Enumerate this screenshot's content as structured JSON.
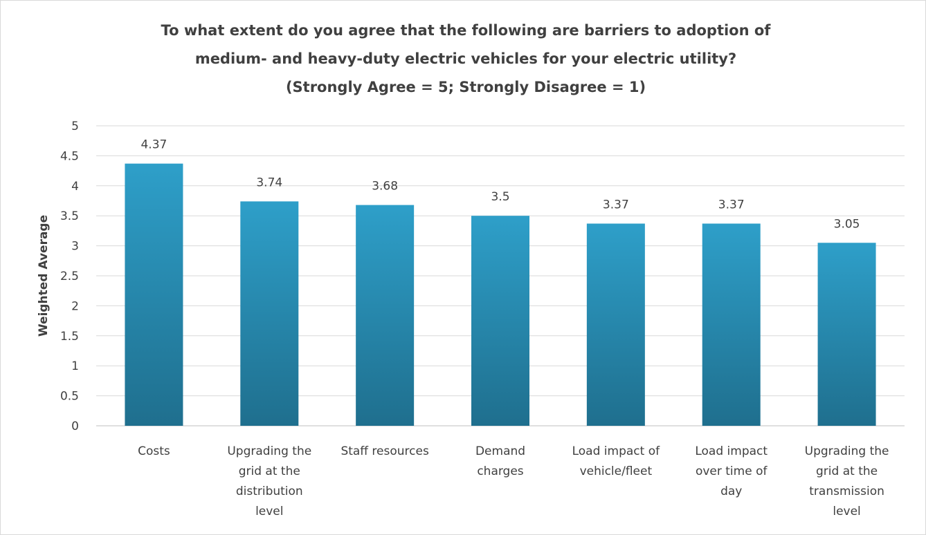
{
  "chart_data": {
    "type": "bar",
    "title": [
      "To what extent do you agree that the following are barriers to adoption of",
      "medium- and heavy-duty electric vehicles for your electric utility?",
      "(Strongly Agree = 5; Strongly Disagree = 1)"
    ],
    "ylabel": "Weighted Average",
    "xlabel": "",
    "ylim": [
      0,
      5
    ],
    "yticks": [
      "0",
      "0.5",
      "1",
      "1.5",
      "2",
      "2.5",
      "3",
      "3.5",
      "4",
      "4.5",
      "5"
    ],
    "grid": true,
    "legend": "none",
    "categories": [
      [
        "Costs"
      ],
      [
        "Upgrading the",
        "grid at the",
        "distribution",
        "level"
      ],
      [
        "Staff resources"
      ],
      [
        "Demand",
        "charges"
      ],
      [
        "Load impact of",
        "vehicle/fleet"
      ],
      [
        "Load impact",
        "over time of",
        "day"
      ],
      [
        "Upgrading the",
        "grid at the",
        "transmission",
        "level"
      ]
    ],
    "values": [
      4.37,
      3.74,
      3.68,
      3.5,
      3.37,
      3.37,
      3.05
    ],
    "data_labels": [
      "4.37",
      "3.74",
      "3.68",
      "3.5",
      "3.37",
      "3.37",
      "3.05"
    ],
    "colors": {
      "bar_top": "#2e9fc9",
      "bar_bottom": "#1f6f8e",
      "text": "#404040",
      "grid": "#d9d9d9"
    }
  }
}
